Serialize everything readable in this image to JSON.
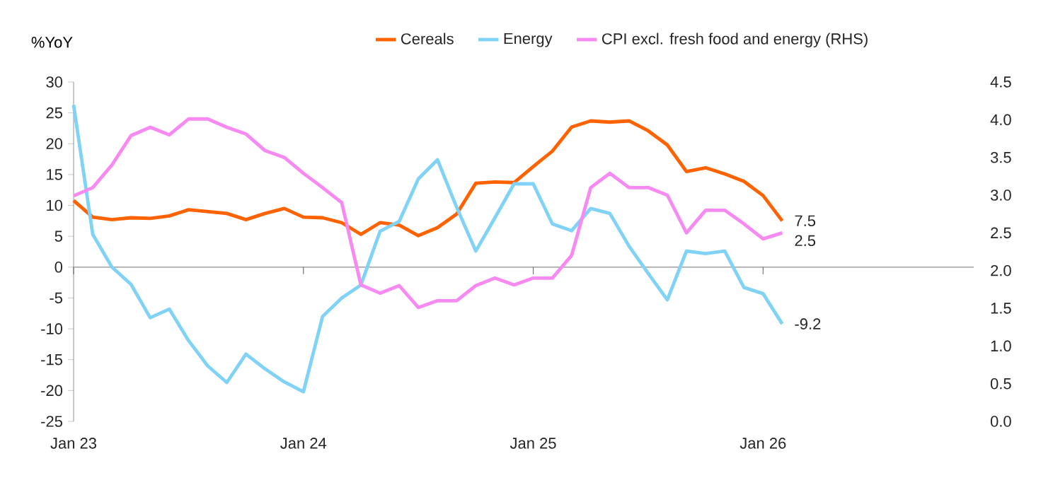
{
  "chart_data": {
    "type": "line",
    "ylabel": "%YoY",
    "x": [
      "2023-01",
      "2023-02",
      "2023-03",
      "2023-04",
      "2023-05",
      "2023-06",
      "2023-07",
      "2023-08",
      "2023-09",
      "2023-10",
      "2023-11",
      "2023-12",
      "2024-01",
      "2024-02",
      "2024-03",
      "2024-04",
      "2024-05",
      "2024-06",
      "2024-07",
      "2024-08",
      "2024-09",
      "2024-10",
      "2024-11",
      "2024-12",
      "2025-01",
      "2025-02",
      "2025-03",
      "2025-04",
      "2025-05",
      "2025-06",
      "2025-07",
      "2025-08",
      "2025-09",
      "2025-10",
      "2025-11",
      "2025-12",
      "2026-01",
      "2026-02"
    ],
    "series": [
      {
        "name": "Cereals",
        "color": "#ff6200",
        "values": [
          10.8,
          8.1,
          7.7,
          8.0,
          7.9,
          8.3,
          9.3,
          9.0,
          8.7,
          7.7,
          8.7,
          9.5,
          8.1,
          8.0,
          7.2,
          5.3,
          7.2,
          6.8,
          5.1,
          6.4,
          8.6,
          13.6,
          13.8,
          13.7,
          16.3,
          18.8,
          22.7,
          23.7,
          23.5,
          23.7,
          22.1,
          19.8,
          15.5,
          16.1,
          15.1,
          13.9,
          11.6,
          7.5
        ],
        "value_labels": [
          null,
          null,
          null,
          null,
          null,
          null,
          null,
          null,
          null,
          null,
          null,
          null,
          null,
          null,
          null,
          null,
          null,
          null,
          null,
          null,
          null,
          null,
          null,
          null,
          null,
          null,
          null,
          null,
          null,
          null,
          null,
          null,
          null,
          null,
          null,
          null,
          null,
          "7.5"
        ]
      },
      {
        "name": "Energy",
        "color": "#80d2f6",
        "values": [
          26.3,
          5.3,
          0.0,
          -2.8,
          -8.2,
          -6.8,
          -11.9,
          -16.0,
          -18.7,
          -14.1,
          -16.5,
          -18.6,
          -20.2,
          -8.0,
          -5.0,
          -2.9,
          5.8,
          7.4,
          14.3,
          17.4,
          9.7,
          2.6,
          8.0,
          13.5,
          13.5,
          7.0,
          5.9,
          9.5,
          8.7,
          3.4,
          -1.0,
          -5.3,
          2.6,
          2.2,
          2.6,
          -3.3,
          -4.3,
          -9.2
        ],
        "value_labels": [
          null,
          null,
          null,
          null,
          null,
          null,
          null,
          null,
          null,
          null,
          null,
          null,
          null,
          null,
          null,
          null,
          null,
          null,
          null,
          null,
          null,
          null,
          null,
          null,
          null,
          null,
          null,
          null,
          null,
          null,
          null,
          null,
          null,
          null,
          null,
          null,
          null,
          "-9.2"
        ]
      },
      {
        "name": "CPI excl. fresh food and energy (RHS)",
        "color": "#f78af2",
        "axis": "y2",
        "values": [
          2.99,
          3.1,
          3.4,
          3.79,
          3.9,
          3.8,
          4.01,
          4.01,
          3.9,
          3.81,
          3.59,
          3.5,
          3.29,
          3.1,
          2.9,
          1.81,
          1.7,
          1.8,
          1.51,
          1.6,
          1.6,
          1.8,
          1.9,
          1.81,
          1.9,
          1.9,
          2.2,
          3.1,
          3.29,
          3.1,
          3.1,
          3.0,
          2.5,
          2.8,
          2.8,
          2.62,
          2.42,
          2.5
        ],
        "value_labels": [
          null,
          null,
          null,
          null,
          null,
          null,
          null,
          null,
          null,
          null,
          null,
          null,
          null,
          null,
          null,
          null,
          null,
          null,
          null,
          null,
          null,
          null,
          null,
          null,
          null,
          null,
          null,
          null,
          null,
          null,
          null,
          null,
          null,
          null,
          null,
          null,
          null,
          "2.5"
        ]
      }
    ],
    "xlim": [
      "2023-01",
      "2026-12"
    ],
    "xticks": [
      {
        "value": "2023-01",
        "label": "Jan 23"
      },
      {
        "value": "2024-01",
        "label": "Jan 24"
      },
      {
        "value": "2025-01",
        "label": "Jan 25"
      },
      {
        "value": "2026-01",
        "label": "Jan 26"
      }
    ],
    "ylim": [
      -25,
      30
    ],
    "yticks": [
      -25,
      -20,
      -15,
      -10,
      -5,
      0,
      5,
      10,
      15,
      20,
      25,
      30
    ],
    "y2lim": [
      0,
      4.5
    ],
    "y2ticks": [
      {
        "value": 0,
        "label": "0.0"
      },
      {
        "value": 0.5,
        "label": "0.5"
      },
      {
        "value": 1,
        "label": "1.0"
      },
      {
        "value": 1.5,
        "label": "1.5"
      },
      {
        "value": 2,
        "label": "2.0"
      },
      {
        "value": 2.5,
        "label": "2.5"
      },
      {
        "value": 3,
        "label": "3.0"
      },
      {
        "value": 3.5,
        "label": "3.5"
      },
      {
        "value": 4,
        "label": "4.0"
      },
      {
        "value": 4.5,
        "label": "4.5"
      }
    ],
    "ref_lines": [
      {
        "axis": "y",
        "value": 0,
        "color": "#8c8c8c"
      }
    ],
    "legend": "top",
    "marker": "none",
    "line_style": "solid"
  }
}
